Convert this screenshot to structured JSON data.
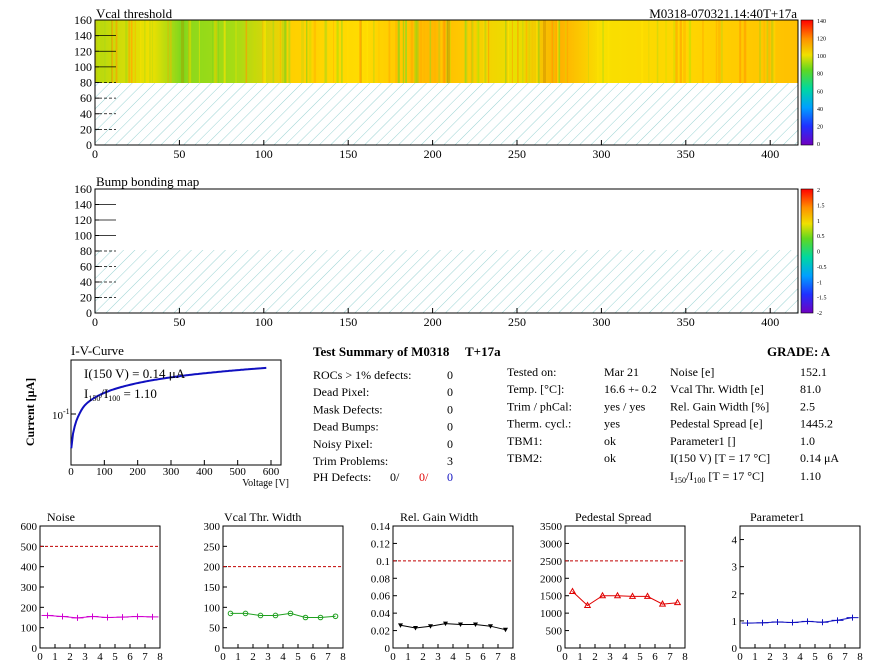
{
  "colors": {
    "map_fill_low": "#7fd21a",
    "map_fill_high": "#ffb400",
    "hatch": "#9ad3d3",
    "iv_curve": "#1010c0",
    "noise": "#d000d0",
    "vcal": "#20a020",
    "relgain": "#000000",
    "pedestal": "#e00000",
    "param1": "#1010c0",
    "limit_line": "#c00000"
  },
  "map1": {
    "title": "Vcal threshold",
    "module_tag": "M0318-070321.14:40T+17a",
    "y_ticks": [
      "160",
      "140",
      "120",
      "100",
      "80",
      "60",
      "40",
      "20",
      "0"
    ],
    "x_ticks": [
      "0",
      "50",
      "100",
      "150",
      "200",
      "250",
      "300",
      "350",
      "400"
    ],
    "palette_labels": [
      "140",
      "120",
      "100",
      "80",
      "60",
      "40",
      "20",
      "0"
    ]
  },
  "map2": {
    "title": "Bump bonding map",
    "y_ticks": [
      "160",
      "140",
      "120",
      "100",
      "80",
      "60",
      "40",
      "20",
      "0"
    ],
    "x_ticks": [
      "0",
      "50",
      "100",
      "150",
      "200",
      "250",
      "300",
      "350",
      "400"
    ],
    "palette_labels": [
      "2",
      "1.5",
      "1",
      "0.5",
      "0",
      "-0.5",
      "-1",
      "-1.5",
      "-2"
    ]
  },
  "iv": {
    "title": "I-V-Curve",
    "ylabel": "Current [μA]",
    "xlabel": "Voltage [V]",
    "ytick": "10",
    "ytick_exp": "-1",
    "x_ticks": [
      "0",
      "100",
      "200",
      "300",
      "400",
      "500",
      "600"
    ],
    "legend_i150": "I(150 V) = 0.14 μA",
    "legend_ratio_pre": "I",
    "legend_ratio_sub1": "150",
    "legend_ratio_mid": "/I",
    "legend_ratio_sub2": "100",
    "legend_ratio_val": " = 1.10"
  },
  "summary": {
    "title": "Test Summary of M0318",
    "tag": "T+17a",
    "grade": "GRADE:  A",
    "left_labels": [
      "ROCs > 1% defects:",
      "Dead Pixel:",
      "Mask Defects:",
      "Dead Bumps:",
      "Noisy Pixel:",
      "Trim Problems:"
    ],
    "left_values": [
      "0",
      "0",
      "0",
      "0",
      "0",
      "3"
    ],
    "ph_label": "PH Defects:",
    "ph_vals": [
      "0/",
      "0/",
      "0"
    ],
    "mid_labels": [
      "Tested on:",
      "Temp. [°C]:",
      "Trim / phCal:",
      "Therm. cycl.:",
      "TBM1:",
      "TBM2:"
    ],
    "mid_values": [
      "Mar 21",
      "16.6 +- 0.2",
      "yes / yes",
      "yes",
      "ok",
      "ok"
    ],
    "right_labels": [
      "Noise [e]",
      "Vcal Thr. Width [e]",
      "Rel. Gain Width [%]",
      "Pedestal Spread [e]",
      "Parameter1 []",
      "I(150 V) [T = 17 °C]"
    ],
    "right_values": [
      "152.1",
      "81.0",
      "2.5",
      "1445.2",
      "1.0",
      "0.14 μA"
    ],
    "ratio_label_pre": "I",
    "ratio_label_sub1": "150",
    "ratio_label_mid": "/I",
    "ratio_label_sub2": "100",
    "ratio_label_post": "  [T = 17 °C]",
    "ratio_value": "1.10"
  },
  "chart_data": [
    {
      "type": "line",
      "title": "Noise",
      "x": [
        0.5,
        1.5,
        2.5,
        3.5,
        4.5,
        5.5,
        6.5,
        7.5
      ],
      "values": [
        160,
        155,
        148,
        155,
        150,
        152,
        155,
        153
      ],
      "ylim": [
        0,
        600
      ],
      "xlim": [
        0,
        8
      ],
      "limit": 500,
      "y_ticks": [
        "0",
        "100",
        "200",
        "300",
        "400",
        "500",
        "600"
      ],
      "x_ticks": [
        "0",
        "1",
        "2",
        "3",
        "4",
        "5",
        "6",
        "7",
        "8"
      ]
    },
    {
      "type": "line",
      "title": "Vcal Thr. Width",
      "x": [
        0.5,
        1.5,
        2.5,
        3.5,
        4.5,
        5.5,
        6.5,
        7.5
      ],
      "values": [
        85,
        85,
        80,
        80,
        85,
        75,
        75,
        78
      ],
      "ylim": [
        0,
        300
      ],
      "xlim": [
        0,
        8
      ],
      "limit": 200,
      "y_ticks": [
        "0",
        "50",
        "100",
        "150",
        "200",
        "250",
        "300"
      ],
      "x_ticks": [
        "0",
        "1",
        "2",
        "3",
        "4",
        "5",
        "6",
        "7",
        "8"
      ]
    },
    {
      "type": "line",
      "title": "Rel. Gain Width",
      "x": [
        0.5,
        1.5,
        2.5,
        3.5,
        4.5,
        5.5,
        6.5,
        7.5
      ],
      "values": [
        0.026,
        0.023,
        0.025,
        0.028,
        0.027,
        0.027,
        0.025,
        0.021
      ],
      "ylim": [
        0,
        0.14
      ],
      "xlim": [
        0,
        8
      ],
      "limit": 0.1,
      "y_ticks": [
        "0",
        "0.02",
        "0.04",
        "0.06",
        "0.08",
        "0.1",
        "0.12",
        "0.14"
      ],
      "x_ticks": [
        "0",
        "1",
        "2",
        "3",
        "4",
        "5",
        "6",
        "7",
        "8"
      ]
    },
    {
      "type": "line",
      "title": "Pedestal Spread",
      "x": [
        0.5,
        1.5,
        2.5,
        3.5,
        4.5,
        5.5,
        6.5,
        7.5
      ],
      "values": [
        1620,
        1220,
        1500,
        1500,
        1480,
        1480,
        1260,
        1300
      ],
      "ylim": [
        0,
        3500
      ],
      "xlim": [
        0,
        8
      ],
      "limit": 2500,
      "y_ticks": [
        "0",
        "500",
        "1000",
        "1500",
        "2000",
        "2500",
        "3000",
        "3500"
      ],
      "x_ticks": [
        "0",
        "1",
        "2",
        "3",
        "4",
        "5",
        "6",
        "7",
        "8"
      ]
    },
    {
      "type": "line",
      "title": "Parameter1",
      "x": [
        0.5,
        1.5,
        2.5,
        3.5,
        4.5,
        5.5,
        6.5,
        7.5
      ],
      "values": [
        0.92,
        0.93,
        0.96,
        0.94,
        0.98,
        0.95,
        1.02,
        1.12
      ],
      "ylim": [
        0,
        4.5
      ],
      "xlim": [
        0,
        8
      ],
      "limit": null,
      "y_ticks": [
        "0",
        "1",
        "2",
        "3",
        "4"
      ],
      "x_ticks": [
        "0",
        "1",
        "2",
        "3",
        "4",
        "5",
        "6",
        "7",
        "8"
      ]
    }
  ]
}
